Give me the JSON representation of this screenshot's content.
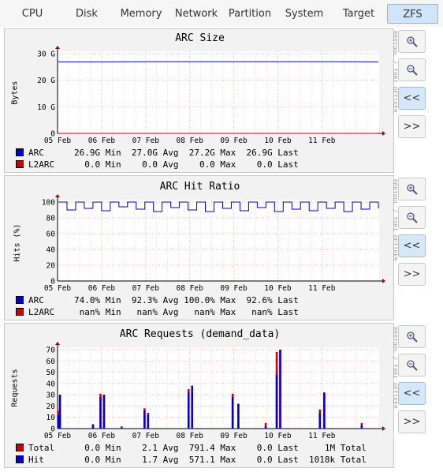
{
  "tabs": [
    {
      "label": "CPU",
      "active": false
    },
    {
      "label": "Disk",
      "active": false
    },
    {
      "label": "Memory",
      "active": false
    },
    {
      "label": "Network",
      "active": false
    },
    {
      "label": "Partition",
      "active": false
    },
    {
      "label": "System",
      "active": false
    },
    {
      "label": "Target",
      "active": false
    },
    {
      "label": "ZFS",
      "active": true
    }
  ],
  "watermark": "RRDTOOL / TOBI OETIKER",
  "buttons": {
    "zoom_in": "zoom-in-icon",
    "zoom_out": "zoom-out-icon",
    "back": "<<",
    "forward": ">>"
  },
  "graphs": [
    {
      "title": "ARC Size",
      "ylabel": "Bytes",
      "legend": [
        {
          "name": "ARC",
          "color": "#0000cc",
          "stats": "26.9G Min  27.0G Avg  27.2G Max  26.9G Last"
        },
        {
          "name": "L2ARC",
          "color": "#cc0000",
          "stats": "  0.0 Min    0.0 Avg    0.0 Max    0.0 Last"
        }
      ]
    },
    {
      "title": "ARC Hit Ratio",
      "ylabel": "Hits (%)",
      "legend": [
        {
          "name": "ARC",
          "color": "#0000cc",
          "stats": "74.0% Min  92.3% Avg 100.0% Max  92.6% Last"
        },
        {
          "name": "L2ARC",
          "color": "#cc0000",
          "stats": " nan% Min   nan% Avg   nan% Max   nan% Last"
        }
      ]
    },
    {
      "title": "ARC Requests (demand_data)",
      "ylabel": "Requests",
      "legend": [
        {
          "name": "Total",
          "color": "#cc0000",
          "stats": "  0.0 Min    2.1 Avg  791.4 Max    0.0 Last     1M Total"
        },
        {
          "name": "Hit",
          "color": "#0000cc",
          "stats": "  0.0 Min    1.7 Avg  571.1 Max    0.0 Last  1018k Total"
        }
      ]
    }
  ],
  "chart_data": [
    {
      "type": "line",
      "title": "ARC Size",
      "ylabel": "Bytes",
      "x_ticks": [
        "05 Feb",
        "06 Feb",
        "07 Feb",
        "08 Feb",
        "09 Feb",
        "10 Feb",
        "11 Feb"
      ],
      "y_ticks": [
        "0",
        "10 G",
        "20 G",
        "30 G"
      ],
      "ylim": [
        0,
        30
      ],
      "grid": true,
      "series": [
        {
          "name": "ARC",
          "color": "#0000cc",
          "values": [
            26.9,
            26.9,
            27.0,
            27.0,
            27.0,
            27.0,
            27.0,
            26.9
          ]
        },
        {
          "name": "L2ARC",
          "color": "#cc0000",
          "values": [
            0,
            0,
            0,
            0,
            0,
            0,
            0,
            0
          ]
        }
      ]
    },
    {
      "type": "line",
      "title": "ARC Hit Ratio",
      "ylabel": "Hits (%)",
      "x_ticks": [
        "05 Feb",
        "06 Feb",
        "07 Feb",
        "08 Feb",
        "09 Feb",
        "10 Feb",
        "11 Feb"
      ],
      "y_ticks": [
        "0",
        "20",
        "40",
        "60",
        "80",
        "100"
      ],
      "ylim": [
        0,
        100
      ],
      "grid": true,
      "series": [
        {
          "name": "ARC",
          "color": "#0000cc",
          "values": [
            100,
            90,
            100,
            92,
            100,
            89,
            100,
            94,
            100,
            91,
            100,
            88,
            100,
            93,
            100,
            90,
            100,
            88,
            100,
            92,
            100,
            89,
            100,
            93,
            100,
            88,
            100,
            91,
            100,
            89,
            100,
            92,
            100,
            88,
            100,
            91,
            100,
            92.6
          ]
        },
        {
          "name": "L2ARC",
          "color": "#cc0000",
          "values": []
        }
      ]
    },
    {
      "type": "bar",
      "title": "ARC Requests (demand_data)",
      "ylabel": "Requests",
      "x_ticks": [
        "05 Feb",
        "06 Feb",
        "07 Feb",
        "08 Feb",
        "09 Feb",
        "10 Feb",
        "11 Feb"
      ],
      "y_ticks": [
        "0",
        "10",
        "20",
        "30",
        "40",
        "50",
        "60",
        "70"
      ],
      "ylim": [
        0,
        70
      ],
      "grid": true,
      "series": [
        {
          "name": "Total",
          "color": "#cc0000",
          "points": [
            [
              0.01,
              16
            ],
            [
              0.05,
              30
            ],
            [
              0.8,
              4
            ],
            [
              0.97,
              31
            ],
            [
              1.05,
              30
            ],
            [
              1.45,
              2
            ],
            [
              1.97,
              18
            ],
            [
              2.05,
              14
            ],
            [
              2.97,
              35
            ],
            [
              3.05,
              38
            ],
            [
              3.97,
              31
            ],
            [
              4.1,
              22
            ],
            [
              4.72,
              5
            ],
            [
              4.97,
              68
            ],
            [
              5.05,
              70
            ],
            [
              5.95,
              17
            ],
            [
              6.05,
              32
            ],
            [
              6.9,
              5
            ]
          ]
        },
        {
          "name": "Hit",
          "color": "#0000cc",
          "points": [
            [
              0.01,
              12
            ],
            [
              0.05,
              30
            ],
            [
              0.8,
              3
            ],
            [
              0.97,
              28
            ],
            [
              1.05,
              30
            ],
            [
              1.45,
              1
            ],
            [
              1.97,
              16
            ],
            [
              2.05,
              12
            ],
            [
              2.97,
              32
            ],
            [
              3.05,
              38
            ],
            [
              3.97,
              28
            ],
            [
              4.1,
              22
            ],
            [
              4.72,
              2
            ],
            [
              4.97,
              48
            ],
            [
              5.05,
              70
            ],
            [
              5.95,
              14
            ],
            [
              6.05,
              32
            ],
            [
              6.9,
              3
            ]
          ]
        }
      ]
    }
  ]
}
